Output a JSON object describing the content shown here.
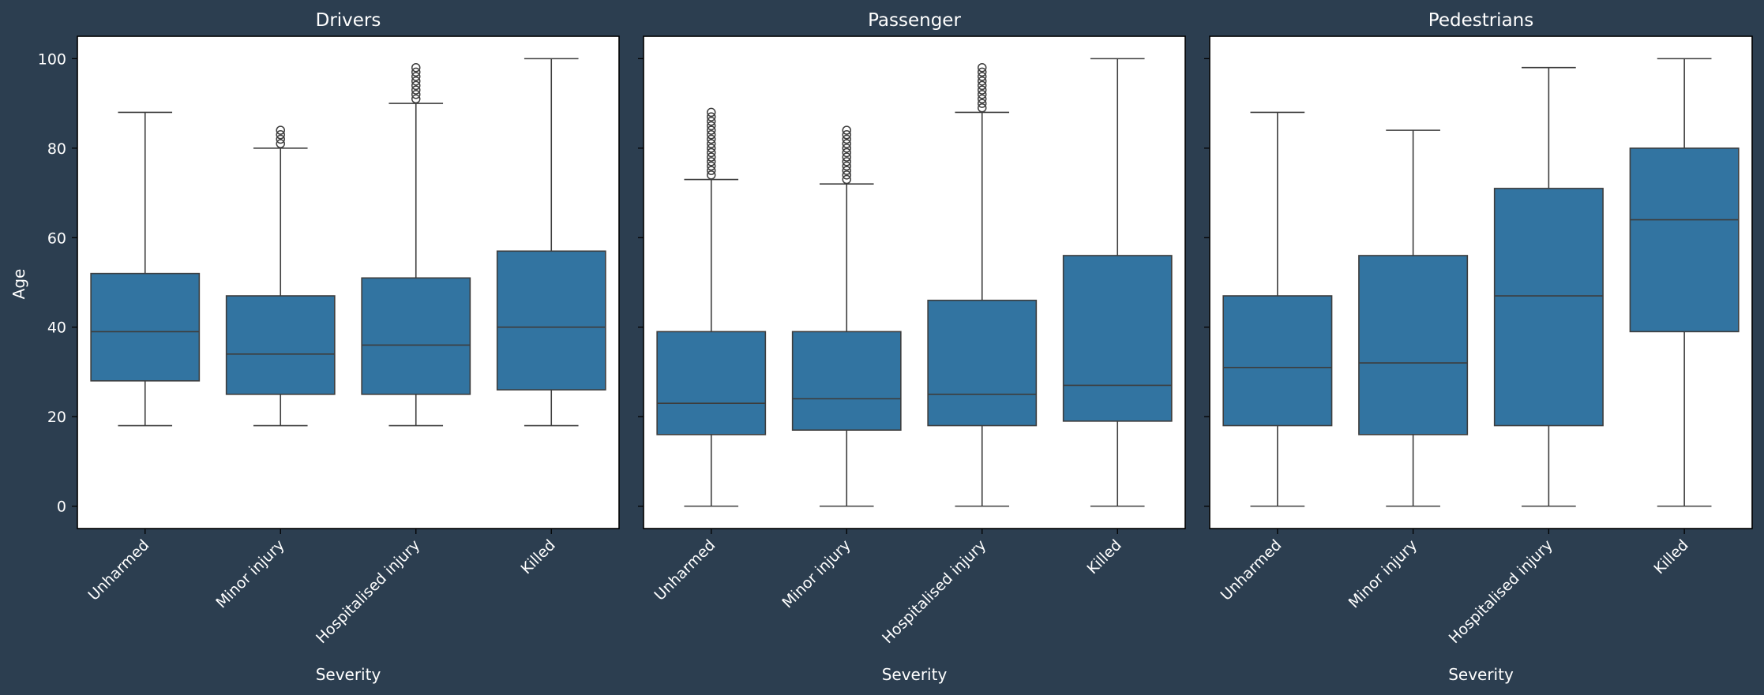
{
  "colors": {
    "background": "#2c3e50",
    "plot_background": "#ffffff",
    "box_fill": "#3274a1",
    "line": "#3d3d3d",
    "text": "#ffffff"
  },
  "chart_data": {
    "type": "box",
    "ylabel": "Age",
    "xlabel": "Severity",
    "yticks": [
      0,
      20,
      40,
      60,
      80,
      100
    ],
    "ylim": [
      -5,
      105
    ],
    "shared_y": true,
    "grid": false,
    "categories": [
      "Unharmed",
      "Minor injury",
      "Hospitalised injury",
      "Killed"
    ],
    "panels": [
      {
        "title": "Drivers",
        "boxes": [
          {
            "category": "Unharmed",
            "whisker_low": 18,
            "q1": 28,
            "median": 39,
            "q3": 52,
            "whisker_high": 88,
            "outliers": []
          },
          {
            "category": "Minor injury",
            "whisker_low": 18,
            "q1": 25,
            "median": 34,
            "q3": 47,
            "whisker_high": 80,
            "outliers": [
              81,
              82,
              83,
              84
            ]
          },
          {
            "category": "Hospitalised injury",
            "whisker_low": 18,
            "q1": 25,
            "median": 36,
            "q3": 51,
            "whisker_high": 90,
            "outliers": [
              91,
              92,
              93,
              94,
              95,
              96,
              97,
              98
            ]
          },
          {
            "category": "Killed",
            "whisker_low": 18,
            "q1": 26,
            "median": 40,
            "q3": 57,
            "whisker_high": 100,
            "outliers": []
          }
        ]
      },
      {
        "title": "Passenger",
        "boxes": [
          {
            "category": "Unharmed",
            "whisker_low": 0,
            "q1": 16,
            "median": 23,
            "q3": 39,
            "whisker_high": 73,
            "outliers": [
              74,
              75,
              76,
              77,
              78,
              79,
              80,
              81,
              82,
              83,
              84,
              85,
              86,
              87,
              88
            ]
          },
          {
            "category": "Minor injury",
            "whisker_low": 0,
            "q1": 17,
            "median": 24,
            "q3": 39,
            "whisker_high": 72,
            "outliers": [
              73,
              74,
              75,
              76,
              77,
              78,
              79,
              80,
              81,
              82,
              83,
              84
            ]
          },
          {
            "category": "Hospitalised injury",
            "whisker_low": 0,
            "q1": 18,
            "median": 25,
            "q3": 46,
            "whisker_high": 88,
            "outliers": [
              89,
              90,
              91,
              92,
              93,
              94,
              95,
              96,
              97,
              98
            ]
          },
          {
            "category": "Killed",
            "whisker_low": 0,
            "q1": 19,
            "median": 27,
            "q3": 56,
            "whisker_high": 100,
            "outliers": []
          }
        ]
      },
      {
        "title": "Pedestrians",
        "boxes": [
          {
            "category": "Unharmed",
            "whisker_low": 0,
            "q1": 18,
            "median": 31,
            "q3": 47,
            "whisker_high": 88,
            "outliers": []
          },
          {
            "category": "Minor injury",
            "whisker_low": 0,
            "q1": 16,
            "median": 32,
            "q3": 56,
            "whisker_high": 84,
            "outliers": []
          },
          {
            "category": "Hospitalised injury",
            "whisker_low": 0,
            "q1": 18,
            "median": 47,
            "q3": 71,
            "whisker_high": 98,
            "outliers": []
          },
          {
            "category": "Killed",
            "whisker_low": 0,
            "q1": 39,
            "median": 64,
            "q3": 80,
            "whisker_high": 100,
            "outliers": []
          }
        ]
      }
    ]
  }
}
